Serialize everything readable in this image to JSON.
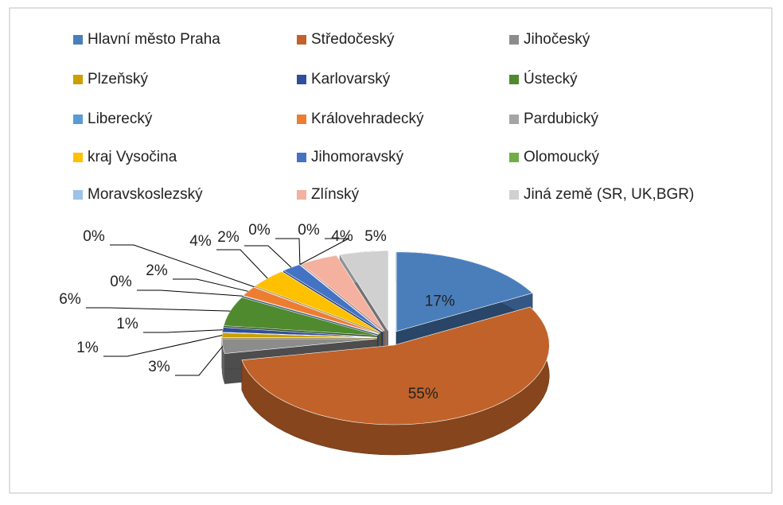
{
  "chart_data": {
    "type": "pie3d",
    "categories": [
      "Hlavní město Praha",
      "Středočeský",
      "Jihočeský",
      "Plzeňský",
      "Karlovarský",
      "Ústecký",
      "Liberecký",
      "Královehradecký",
      "Pardubický",
      "kraj Vysočina",
      "Jihomoravský",
      "Olomoucký",
      "Moravskoslezský",
      "Zlínský",
      "Jiná země (SR, UK,BGR)"
    ],
    "values": [
      17,
      55,
      3,
      1,
      1,
      6,
      0,
      2,
      0,
      4,
      2,
      0,
      0,
      4,
      5
    ],
    "value_labels": [
      "17%",
      "55%",
      "3%",
      "1%",
      "1%",
      "6%",
      "0%",
      "2%",
      "0%",
      "4%",
      "2%",
      "0%",
      "0%",
      "4%",
      "5%"
    ],
    "colors": [
      "#4a7ebb",
      "#c0622a",
      "#8c8c8c",
      "#c9a000",
      "#2f4f9b",
      "#4f8a2f",
      "#5b9bd5",
      "#ed7d31",
      "#a5a5a5",
      "#ffc000",
      "#4472c4",
      "#70ad47",
      "#9dc3e6",
      "#f4b1a0",
      "#d0d0d0"
    ],
    "legend": "top"
  }
}
